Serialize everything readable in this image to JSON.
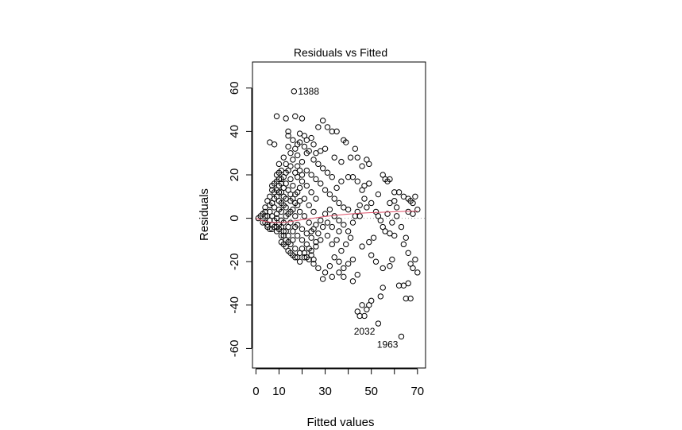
{
  "chart_data": {
    "type": "scatter",
    "title": "Residuals vs Fitted",
    "xlabel": "Fitted values",
    "ylabel": "Residuals",
    "xlim": [
      -1.5,
      73.5
    ],
    "ylim": [
      -69,
      72
    ],
    "xticks": [
      0,
      10,
      30,
      50,
      70
    ],
    "xtick_labels": [
      "0",
      "10",
      "30",
      "50",
      "70"
    ],
    "yticks": [
      -60,
      -40,
      -20,
      0,
      20,
      40,
      60
    ],
    "ytick_labels": [
      "-60",
      "-40",
      "-20",
      "0",
      "20",
      "40",
      "60"
    ],
    "reference_line": {
      "y": 0,
      "style": "dotted",
      "color": "#999999"
    },
    "smooth_color": "#DF536B",
    "point_color": "#000000",
    "grid": false,
    "legend": "none",
    "labeled_points": [
      {
        "label": "1388",
        "x": 16.5,
        "y": 58.5
      },
      {
        "label": "2032",
        "x": 53,
        "y": -48.5
      },
      {
        "label": "1963",
        "x": 63,
        "y": -54.5
      }
    ],
    "smooth_line": {
      "x": [
        0,
        3,
        6,
        9,
        12,
        15,
        18,
        22,
        26,
        30,
        35,
        40,
        45,
        50,
        55,
        60,
        65,
        70
      ],
      "y": [
        0,
        -1.2,
        -1.8,
        -2.0,
        -1.9,
        -1.5,
        -1.0,
        -0.4,
        0.2,
        0.8,
        1.4,
        1.9,
        2.3,
        2.6,
        2.8,
        3.0,
        3.2,
        3.3
      ]
    },
    "points": [
      {
        "x": 17,
        "y": 47
      },
      {
        "x": 20,
        "y": 46
      },
      {
        "x": 13,
        "y": 46
      },
      {
        "x": 29,
        "y": 45
      },
      {
        "x": 9,
        "y": 47
      },
      {
        "x": 31,
        "y": 42
      },
      {
        "x": 35,
        "y": 40
      },
      {
        "x": 33,
        "y": 40
      },
      {
        "x": 27,
        "y": 42
      },
      {
        "x": 38,
        "y": 36
      },
      {
        "x": 39,
        "y": 35
      },
      {
        "x": 14,
        "y": 40
      },
      {
        "x": 14,
        "y": 38
      },
      {
        "x": 6,
        "y": 35
      },
      {
        "x": 8,
        "y": 34
      },
      {
        "x": 21,
        "y": 38
      },
      {
        "x": 24,
        "y": 37
      },
      {
        "x": 18,
        "y": 34
      },
      {
        "x": 30,
        "y": 32
      },
      {
        "x": 43,
        "y": 32
      },
      {
        "x": 41,
        "y": 28
      },
      {
        "x": 44,
        "y": 28
      },
      {
        "x": 48,
        "y": 27
      },
      {
        "x": 49,
        "y": 25
      },
      {
        "x": 46,
        "y": 24
      },
      {
        "x": 22,
        "y": 30
      },
      {
        "x": 26,
        "y": 30
      },
      {
        "x": 34,
        "y": 28
      },
      {
        "x": 37,
        "y": 26
      },
      {
        "x": 40,
        "y": 19
      },
      {
        "x": 42,
        "y": 19
      },
      {
        "x": 44,
        "y": 17
      },
      {
        "x": 47,
        "y": 15
      },
      {
        "x": 46,
        "y": 13
      },
      {
        "x": 49,
        "y": 16
      },
      {
        "x": 55,
        "y": 20
      },
      {
        "x": 56,
        "y": 18
      },
      {
        "x": 58,
        "y": 18
      },
      {
        "x": 57,
        "y": 17
      },
      {
        "x": 60,
        "y": 12
      },
      {
        "x": 62,
        "y": 12
      },
      {
        "x": 64,
        "y": 10
      },
      {
        "x": 66,
        "y": 9
      },
      {
        "x": 67,
        "y": 8
      },
      {
        "x": 68,
        "y": 7
      },
      {
        "x": 60,
        "y": 8
      },
      {
        "x": 53,
        "y": 11
      },
      {
        "x": 58,
        "y": 7
      },
      {
        "x": 61,
        "y": 5
      },
      {
        "x": 66,
        "y": 3
      },
      {
        "x": 48,
        "y": 5
      },
      {
        "x": 44,
        "y": 3
      },
      {
        "x": 45,
        "y": 1
      },
      {
        "x": 53,
        "y": 1
      },
      {
        "x": 55,
        "y": -4
      },
      {
        "x": 58,
        "y": -7
      },
      {
        "x": 60,
        "y": -8
      },
      {
        "x": 56,
        "y": -6
      },
      {
        "x": 51,
        "y": -9
      },
      {
        "x": 49,
        "y": -11
      },
      {
        "x": 46,
        "y": -13
      },
      {
        "x": 50,
        "y": -17
      },
      {
        "x": 52,
        "y": -20
      },
      {
        "x": 55,
        "y": -23
      },
      {
        "x": 58,
        "y": -22
      },
      {
        "x": 59,
        "y": -19
      },
      {
        "x": 64,
        "y": -12
      },
      {
        "x": 66,
        "y": -16
      },
      {
        "x": 67,
        "y": -21
      },
      {
        "x": 69,
        "y": -19
      },
      {
        "x": 70,
        "y": -25
      },
      {
        "x": 68,
        "y": -23
      },
      {
        "x": 66,
        "y": -30
      },
      {
        "x": 67,
        "y": -37
      },
      {
        "x": 65,
        "y": -37
      },
      {
        "x": 64,
        "y": -31
      },
      {
        "x": 62,
        "y": -31
      },
      {
        "x": 55,
        "y": -32
      },
      {
        "x": 54,
        "y": -36
      },
      {
        "x": 50,
        "y": -38
      },
      {
        "x": 48,
        "y": -42
      },
      {
        "x": 46,
        "y": -40
      },
      {
        "x": 44,
        "y": -43
      },
      {
        "x": 47,
        "y": -45
      },
      {
        "x": 45,
        "y": -45
      },
      {
        "x": 49,
        "y": -40
      },
      {
        "x": 40,
        "y": -21
      },
      {
        "x": 42,
        "y": -19
      },
      {
        "x": 38,
        "y": -23
      },
      {
        "x": 36,
        "y": -20
      },
      {
        "x": 34,
        "y": -18
      },
      {
        "x": 32,
        "y": -22
      },
      {
        "x": 30,
        "y": -25
      },
      {
        "x": 29,
        "y": -28
      },
      {
        "x": 27,
        "y": -23
      },
      {
        "x": 25,
        "y": -21
      },
      {
        "x": 23,
        "y": -19
      },
      {
        "x": 21,
        "y": -18
      },
      {
        "x": 44,
        "y": -26
      },
      {
        "x": 42,
        "y": -29
      },
      {
        "x": 38,
        "y": -27
      },
      {
        "x": 36,
        "y": -25
      },
      {
        "x": 33,
        "y": -27
      },
      {
        "x": 37,
        "y": -15
      },
      {
        "x": 39,
        "y": -12
      },
      {
        "x": 41,
        "y": -9
      },
      {
        "x": 36,
        "y": -6
      },
      {
        "x": 33,
        "y": -4
      },
      {
        "x": 31,
        "y": -8
      },
      {
        "x": 28,
        "y": -10
      },
      {
        "x": 26,
        "y": -13
      },
      {
        "x": 24,
        "y": -15
      },
      {
        "x": 19,
        "y": -16
      },
      {
        "x": 17,
        "y": -14
      },
      {
        "x": 15,
        "y": -12
      },
      {
        "x": 13,
        "y": -10
      },
      {
        "x": 11,
        "y": -8
      },
      {
        "x": 9,
        "y": -6
      },
      {
        "x": 7,
        "y": -5
      },
      {
        "x": 5,
        "y": -3
      },
      {
        "x": 3,
        "y": -2
      },
      {
        "x": 1,
        "y": 0
      },
      {
        "x": 2,
        "y": 1
      },
      {
        "x": 4,
        "y": 3
      },
      {
        "x": 6,
        "y": 6
      },
      {
        "x": 8,
        "y": 9
      },
      {
        "x": 10,
        "y": 12
      },
      {
        "x": 12,
        "y": 14
      },
      {
        "x": 11,
        "y": 18
      },
      {
        "x": 13,
        "y": 21
      },
      {
        "x": 15,
        "y": 24
      },
      {
        "x": 16,
        "y": 27
      },
      {
        "x": 18,
        "y": 29
      },
      {
        "x": 20,
        "y": 26
      },
      {
        "x": 22,
        "y": 22
      },
      {
        "x": 24,
        "y": 20
      },
      {
        "x": 26,
        "y": 18
      },
      {
        "x": 28,
        "y": 16
      },
      {
        "x": 30,
        "y": 13
      },
      {
        "x": 32,
        "y": 11
      },
      {
        "x": 34,
        "y": 9
      },
      {
        "x": 36,
        "y": 7
      },
      {
        "x": 38,
        "y": 5
      },
      {
        "x": 40,
        "y": 4
      },
      {
        "x": 35,
        "y": 14
      },
      {
        "x": 37,
        "y": 17
      },
      {
        "x": 33,
        "y": 19
      },
      {
        "x": 31,
        "y": 21
      },
      {
        "x": 29,
        "y": 23
      },
      {
        "x": 27,
        "y": 25
      },
      {
        "x": 25,
        "y": 27
      },
      {
        "x": 23,
        "y": 31
      },
      {
        "x": 21,
        "y": 33
      },
      {
        "x": 19,
        "y": 35
      },
      {
        "x": 17,
        "y": 32
      },
      {
        "x": 15,
        "y": 30
      },
      {
        "x": 10,
        "y": 25
      },
      {
        "x": 9,
        "y": 20
      },
      {
        "x": 8,
        "y": 16
      },
      {
        "x": 7,
        "y": 13
      },
      {
        "x": 6,
        "y": 10
      },
      {
        "x": 5,
        "y": 8
      },
      {
        "x": 4,
        "y": 5
      },
      {
        "x": 12,
        "y": 28
      },
      {
        "x": 14,
        "y": 33
      },
      {
        "x": 16,
        "y": 36
      },
      {
        "x": 19,
        "y": 39
      },
      {
        "x": 22,
        "y": 36
      },
      {
        "x": 25,
        "y": 34
      },
      {
        "x": 28,
        "y": 31
      },
      {
        "x": 12,
        "y": -2
      },
      {
        "x": 14,
        "y": -4
      },
      {
        "x": 16,
        "y": -6
      },
      {
        "x": 18,
        "y": -8
      },
      {
        "x": 20,
        "y": -10
      },
      {
        "x": 22,
        "y": -12
      },
      {
        "x": 24,
        "y": -6
      },
      {
        "x": 26,
        "y": -3
      },
      {
        "x": 28,
        "y": -1
      },
      {
        "x": 30,
        "y": 2
      },
      {
        "x": 32,
        "y": 4
      },
      {
        "x": 34,
        "y": 1
      },
      {
        "x": 36,
        "y": -1
      },
      {
        "x": 38,
        "y": -3
      },
      {
        "x": 40,
        "y": -6
      },
      {
        "x": 42,
        "y": -2
      },
      {
        "x": 43,
        "y": 1
      },
      {
        "x": 45,
        "y": 6
      },
      {
        "x": 47,
        "y": 9
      },
      {
        "x": 50,
        "y": 7
      },
      {
        "x": 52,
        "y": 3
      },
      {
        "x": 54,
        "y": -1
      },
      {
        "x": 57,
        "y": 2
      },
      {
        "x": 59,
        "y": -2
      },
      {
        "x": 61,
        "y": 1
      },
      {
        "x": 63,
        "y": -4
      },
      {
        "x": 65,
        "y": -9
      },
      {
        "x": 68,
        "y": 2
      },
      {
        "x": 70,
        "y": 4
      },
      {
        "x": 69,
        "y": 10
      },
      {
        "x": 10,
        "y": 4
      },
      {
        "x": 11,
        "y": 7
      },
      {
        "x": 9,
        "y": 2
      },
      {
        "x": 13,
        "y": 5
      },
      {
        "x": 15,
        "y": 8
      },
      {
        "x": 17,
        "y": 11
      },
      {
        "x": 19,
        "y": 14
      },
      {
        "x": 21,
        "y": 9
      },
      {
        "x": 23,
        "y": 6
      },
      {
        "x": 25,
        "y": 3
      },
      {
        "x": 18,
        "y": 19
      },
      {
        "x": 20,
        "y": 17
      },
      {
        "x": 22,
        "y": 15
      },
      {
        "x": 24,
        "y": 12
      },
      {
        "x": 26,
        "y": 9
      },
      {
        "x": 8,
        "y": -1
      },
      {
        "x": 10,
        "y": -3
      },
      {
        "x": 12,
        "y": -6
      },
      {
        "x": 14,
        "y": -8
      },
      {
        "x": 16,
        "y": -10
      },
      {
        "x": 7,
        "y": 1
      },
      {
        "x": 9,
        "y": -4
      },
      {
        "x": 11,
        "y": -1
      },
      {
        "x": 13,
        "y": 1
      },
      {
        "x": 15,
        "y": 3
      },
      {
        "x": 17,
        "y": 1
      },
      {
        "x": 19,
        "y": 3
      },
      {
        "x": 21,
        "y": 1
      },
      {
        "x": 23,
        "y": -2
      },
      {
        "x": 25,
        "y": -5
      },
      {
        "x": 27,
        "y": -7
      },
      {
        "x": 29,
        "y": -4
      },
      {
        "x": 31,
        "y": -2
      },
      {
        "x": 33,
        "y": -12
      },
      {
        "x": 35,
        "y": -10
      },
      {
        "x": 18,
        "y": -3
      },
      {
        "x": 20,
        "y": -5
      },
      {
        "x": 22,
        "y": -7
      },
      {
        "x": 24,
        "y": -9
      },
      {
        "x": 26,
        "y": -11
      },
      {
        "x": 6,
        "y": 3
      },
      {
        "x": 7,
        "y": 7
      },
      {
        "x": 8,
        "y": 5
      },
      {
        "x": 9,
        "y": 10
      },
      {
        "x": 10,
        "y": 8
      },
      {
        "x": 11,
        "y": 12
      },
      {
        "x": 12,
        "y": 10
      },
      {
        "x": 13,
        "y": 16
      },
      {
        "x": 14,
        "y": 13
      },
      {
        "x": 15,
        "y": 18
      },
      {
        "x": 16,
        "y": 15
      },
      {
        "x": 17,
        "y": 21
      },
      {
        "x": 18,
        "y": 24
      },
      {
        "x": 19,
        "y": 22
      },
      {
        "x": 20,
        "y": 20
      },
      {
        "x": 5,
        "y": 1
      },
      {
        "x": 6,
        "y": -1
      },
      {
        "x": 7,
        "y": -3
      },
      {
        "x": 8,
        "y": -4
      },
      {
        "x": 9,
        "y": 0
      },
      {
        "x": 10,
        "y": -5
      },
      {
        "x": 11,
        "y": -4
      },
      {
        "x": 12,
        "y": -8
      },
      {
        "x": 13,
        "y": -6
      },
      {
        "x": 14,
        "y": -11
      },
      {
        "x": 10,
        "y": 15
      },
      {
        "x": 11,
        "y": 22
      },
      {
        "x": 12,
        "y": 19
      },
      {
        "x": 13,
        "y": 25
      },
      {
        "x": 14,
        "y": 22
      },
      {
        "x": 9,
        "y": 13
      },
      {
        "x": 10,
        "y": 18
      },
      {
        "x": 11,
        "y": 3
      },
      {
        "x": 12,
        "y": 6
      },
      {
        "x": 13,
        "y": 9
      },
      {
        "x": 7,
        "y": 15
      },
      {
        "x": 8,
        "y": 12
      },
      {
        "x": 9,
        "y": 17
      },
      {
        "x": 10,
        "y": 21
      },
      {
        "x": 11,
        "y": 16
      },
      {
        "x": 3,
        "y": 2
      },
      {
        "x": 4,
        "y": 1
      },
      {
        "x": 4,
        "y": -2
      },
      {
        "x": 5,
        "y": -4
      },
      {
        "x": 6,
        "y": -5
      },
      {
        "x": 14,
        "y": 2
      },
      {
        "x": 15,
        "y": -2
      },
      {
        "x": 16,
        "y": 4
      },
      {
        "x": 17,
        "y": -4
      },
      {
        "x": 18,
        "y": 6
      },
      {
        "x": 15,
        "y": 11
      },
      {
        "x": 16,
        "y": 9
      },
      {
        "x": 17,
        "y": 7
      },
      {
        "x": 18,
        "y": 12
      },
      {
        "x": 19,
        "y": 8
      },
      {
        "x": 11,
        "y": -11
      },
      {
        "x": 12,
        "y": -12
      },
      {
        "x": 13,
        "y": -13
      },
      {
        "x": 14,
        "y": -15
      },
      {
        "x": 15,
        "y": -16
      },
      {
        "x": 16,
        "y": -17
      },
      {
        "x": 17,
        "y": -18
      },
      {
        "x": 18,
        "y": -18
      },
      {
        "x": 19,
        "y": -20
      },
      {
        "x": 20,
        "y": -14
      },
      {
        "x": 21,
        "y": -16
      },
      {
        "x": 22,
        "y": -18
      },
      {
        "x": 23,
        "y": -14
      },
      {
        "x": 24,
        "y": -17
      },
      {
        "x": 25,
        "y": -19
      }
    ]
  }
}
